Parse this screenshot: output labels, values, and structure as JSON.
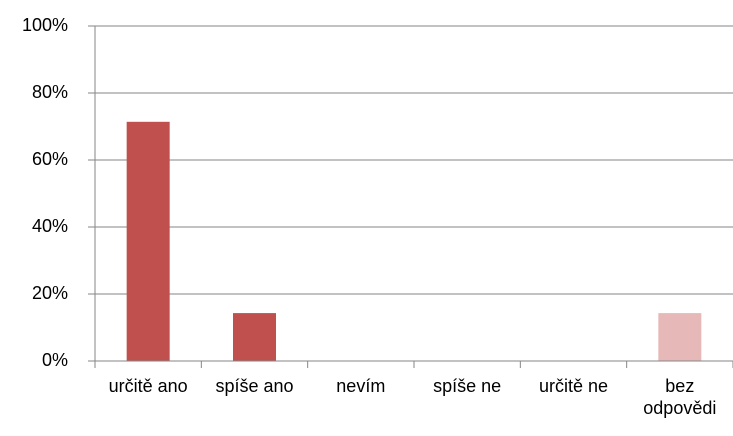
{
  "chart_data": {
    "type": "bar",
    "categories": [
      "určitě ano",
      "spíše ano",
      "nevím",
      "spíše ne",
      "určitě ne",
      "bez odpovědi"
    ],
    "values": [
      71.4,
      14.3,
      0,
      0,
      0,
      14.3
    ],
    "colors": [
      "#c0504d",
      "#c0504d",
      "#c0504d",
      "#c0504d",
      "#c0504d",
      "#e6b9b8"
    ],
    "ylim": [
      0,
      100
    ],
    "yticks": [
      {
        "value": 0,
        "label": "0%"
      },
      {
        "value": 20,
        "label": "20%"
      },
      {
        "value": 40,
        "label": "40%"
      },
      {
        "value": 60,
        "label": "60%"
      },
      {
        "value": 80,
        "label": "80%"
      },
      {
        "value": 100,
        "label": "100%"
      }
    ],
    "grid": true
  }
}
